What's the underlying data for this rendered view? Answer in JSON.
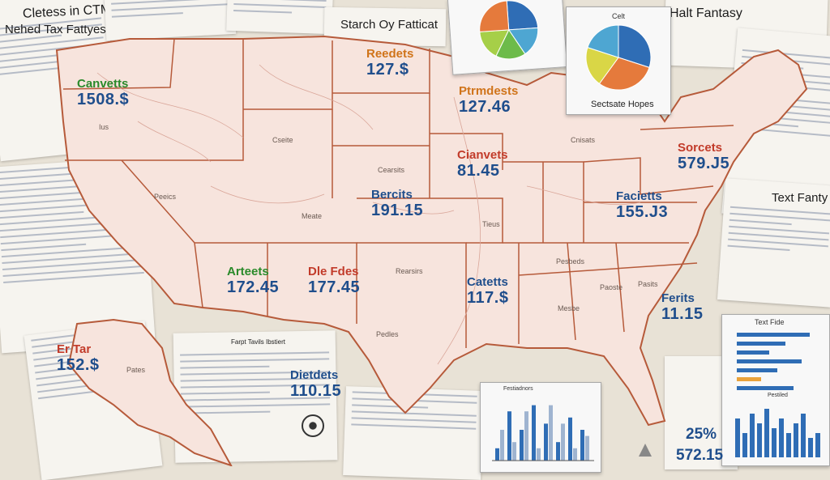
{
  "papers": {
    "top_left_title": "Cletess in CTM",
    "left_title": "Nehed Tax Fattyes",
    "center_title": "Starch Oy Fatticat",
    "top_right_title": "Halt Fantasy",
    "right_title": "Text Fanty",
    "bottom_right_title": "Text Fide",
    "bottom_right_chart_title": "Pestiled",
    "center_doc_title": "Farpt Tavils Ibstiert",
    "bottom_center_chart_title": "Festiadnors"
  },
  "pie_card": {
    "caption": "Sectsate Hopes",
    "top_label": "Celt",
    "colors": [
      "#2f6db5",
      "#e57a3c",
      "#d9d646",
      "#4ea6d2"
    ]
  },
  "top_pie_colors": [
    "#2f6db5",
    "#4ea6d2",
    "#6dbb4a",
    "#a6cf48",
    "#e57a3c"
  ],
  "map_labels": [
    {
      "title": "Canvetts",
      "value": "1508.$",
      "color": "#2a8a2a"
    },
    {
      "title": "Reedets",
      "value": "127.$",
      "color": "#d0741a"
    },
    {
      "title": "Ptrmdests",
      "value": "127.46",
      "color": "#d0741a"
    },
    {
      "title": "Cianvets",
      "value": "81.45",
      "color": "#c23b2a"
    },
    {
      "title": "Sorcets",
      "value": "579.J5",
      "color": "#c23b2a"
    },
    {
      "title": "Bercits",
      "value": "191.15",
      "color": "#1f4e8c"
    },
    {
      "title": "Facietts",
      "value": "155.J3",
      "color": "#1f4e8c"
    },
    {
      "title": "Arteets",
      "value": "172.45",
      "color": "#2a8a2a"
    },
    {
      "title": "Dle Fdes",
      "value": "177.45",
      "color": "#c23b2a"
    },
    {
      "title": "Catetts",
      "value": "117.$",
      "color": "#1f4e8c"
    },
    {
      "title": "Ferits",
      "value": "11.15",
      "color": "#1f4e8c"
    },
    {
      "title": "Er  Tar",
      "value": "152.$",
      "color": "#c23b2a"
    },
    {
      "title": "Dietdets",
      "value": "110.15",
      "color": "#1f4e8c"
    }
  ],
  "bottom_stats": {
    "percent": "25%",
    "value": "572.15"
  },
  "chart_data": [
    {
      "type": "bar",
      "title": "Festiadnors",
      "series": [
        {
          "values": [
            2,
            8,
            5,
            9,
            6,
            3,
            7,
            5
          ]
        },
        {
          "values": [
            5,
            3,
            8,
            2,
            9,
            6,
            2,
            4
          ]
        }
      ],
      "colors": [
        "#2f6db5",
        "#9fb4d0"
      ]
    },
    {
      "type": "bar",
      "title": "Pestiled",
      "values": [
        8,
        5,
        9,
        7,
        10,
        6,
        8,
        5,
        7,
        9,
        4,
        5
      ],
      "colors": [
        "#2f6db5"
      ]
    },
    {
      "type": "bar",
      "title": "Text Fide",
      "orientation": "horizontal",
      "values": [
        9,
        6,
        4,
        8,
        5,
        3,
        7
      ],
      "colors": [
        "#2f6db5",
        "#e9a23b"
      ]
    }
  ]
}
